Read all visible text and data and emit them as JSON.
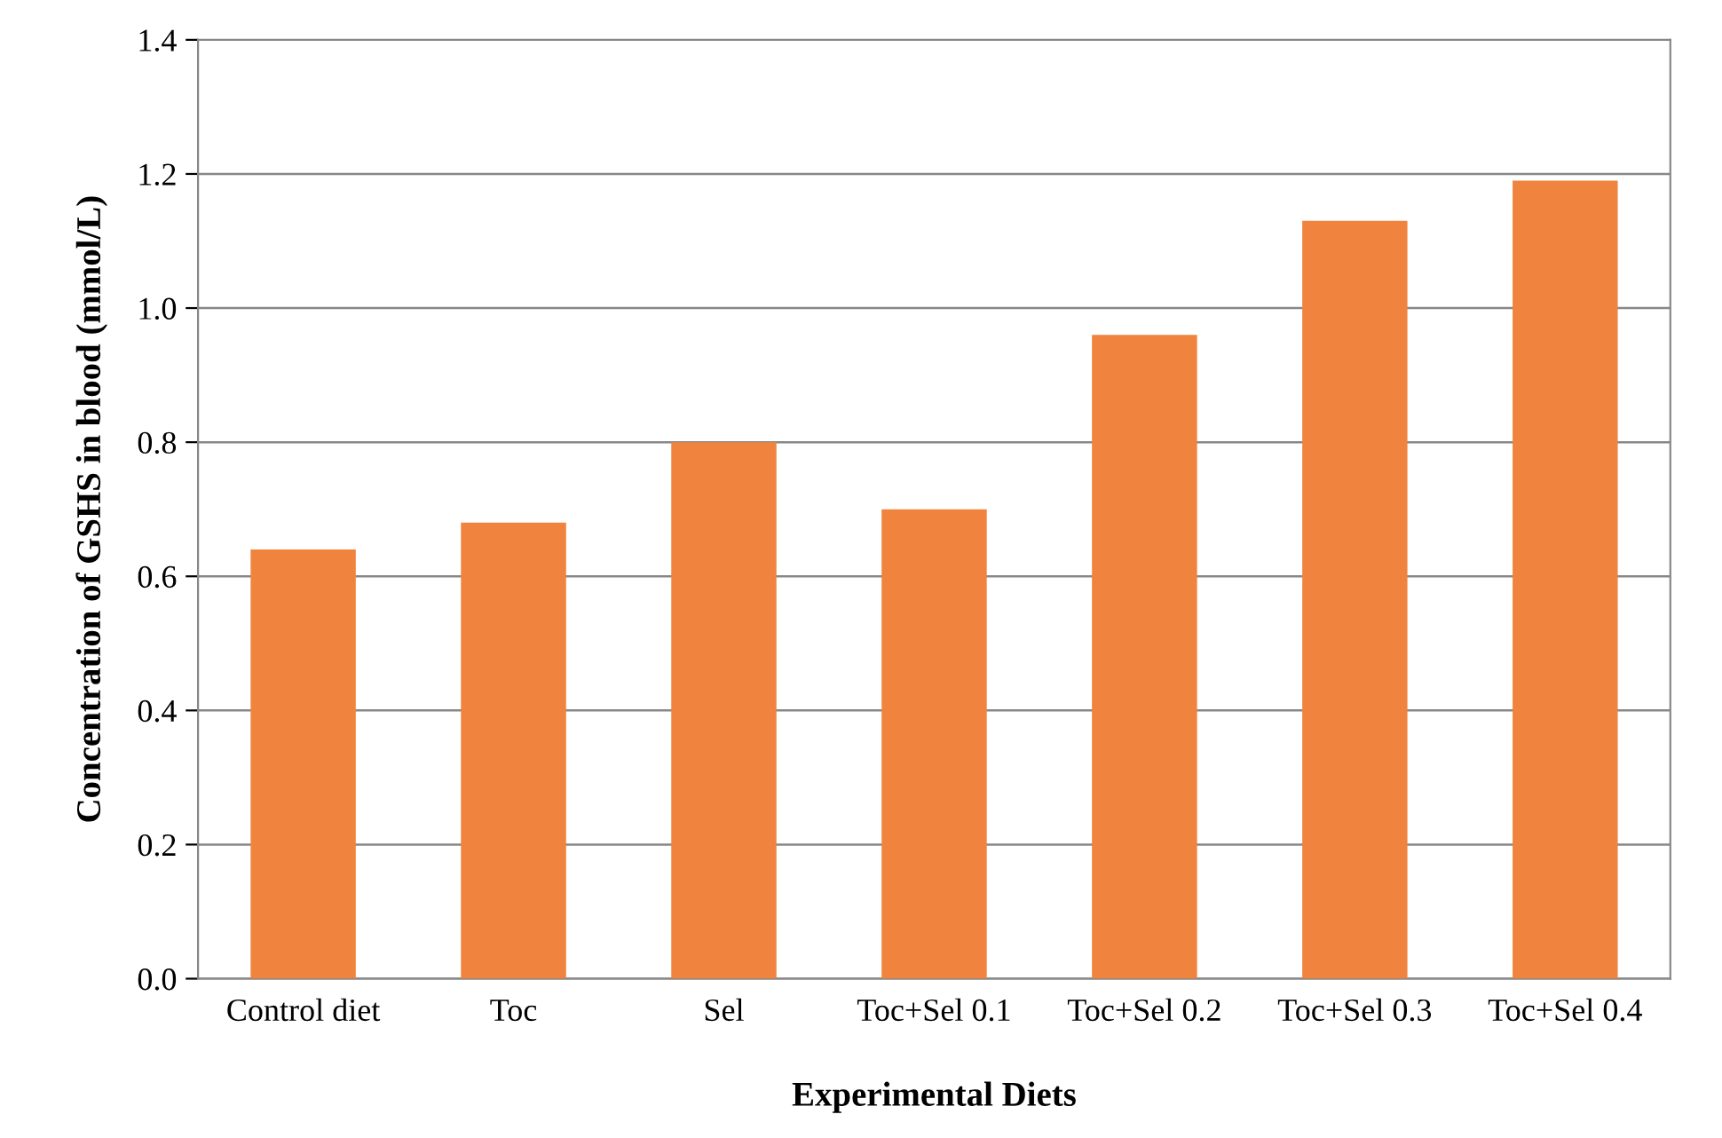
{
  "chart_data": {
    "type": "bar",
    "xlabel": "Experimental Diets",
    "ylabel": "Concentration of GSHS in blood (mmol/L)",
    "categories": [
      "Control diet",
      "Toc",
      "Sel",
      "Toc+Sel 0.1",
      "Toc+Sel 0.2",
      "Toc+Sel 0.3",
      "Toc+Sel 0.4"
    ],
    "values": [
      0.64,
      0.68,
      0.8,
      0.7,
      0.96,
      1.13,
      1.19
    ],
    "color": "#f0843f",
    "ylim": [
      0,
      1.4
    ],
    "yticks": [
      {
        "value": 0,
        "label": "0.0"
      },
      {
        "value": 0.2,
        "label": "0.2"
      },
      {
        "value": 0.4,
        "label": "0.4"
      },
      {
        "value": 0.6,
        "label": "0.6"
      },
      {
        "value": 0.8,
        "label": "0.8"
      },
      {
        "value": 1.0,
        "label": "1.0"
      },
      {
        "value": 1.2,
        "label": "1.2"
      },
      {
        "value": 1.4,
        "label": "1.4"
      }
    ],
    "grid": "y",
    "legend": false
  }
}
